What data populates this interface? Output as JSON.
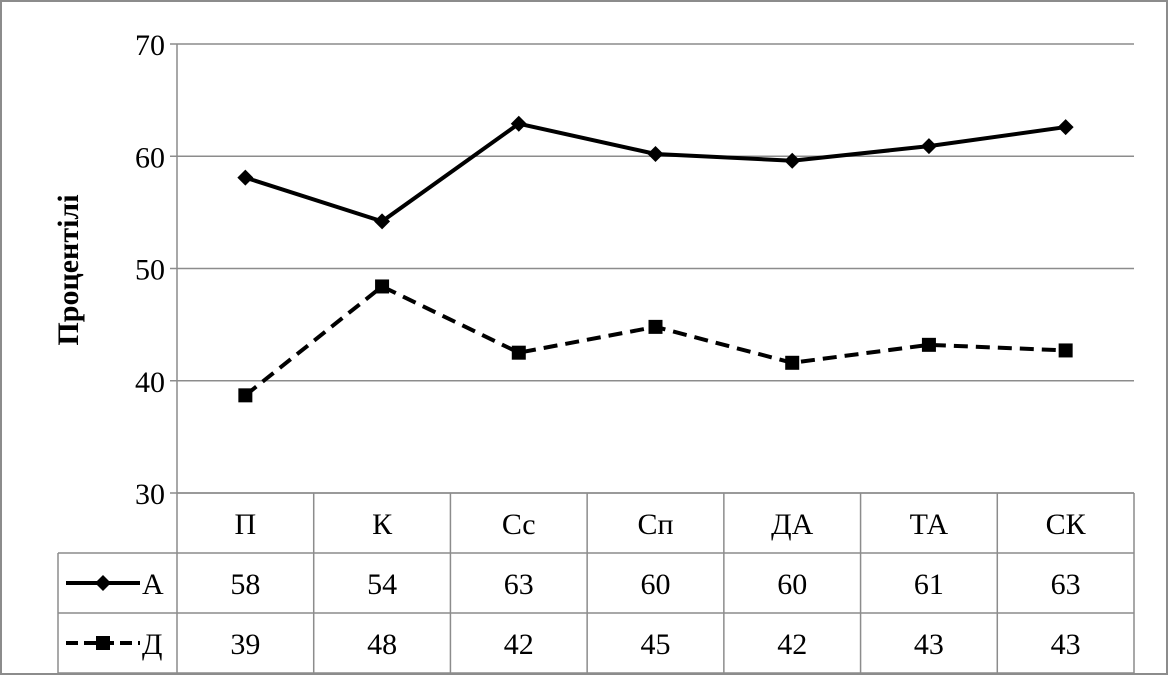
{
  "chart_data": {
    "type": "line",
    "title": "",
    "xlabel": "",
    "ylabel": "Процентілі",
    "ylim": [
      30,
      70
    ],
    "yticks": [
      "30",
      "40",
      "50",
      "60",
      "70"
    ],
    "grid": true,
    "legend_placement": "data table rows",
    "categories": [
      "П",
      "К",
      "Сс",
      "Сп",
      "ДА",
      "ТА",
      "СК"
    ],
    "series": [
      {
        "name": "А",
        "line_style": "solid",
        "marker": "diamond",
        "color": "#000000",
        "values": [
          58.1,
          54.2,
          62.9,
          60.2,
          59.6,
          60.9,
          62.6
        ],
        "table_values": [
          "58",
          "54",
          "63",
          "60",
          "60",
          "61",
          "63"
        ]
      },
      {
        "name": "Д",
        "line_style": "dashed",
        "marker": "square",
        "color": "#000000",
        "values": [
          38.7,
          48.4,
          42.5,
          44.8,
          41.6,
          43.2,
          42.7
        ],
        "table_values": [
          "39",
          "48",
          "42",
          "45",
          "42",
          "43",
          "43"
        ]
      }
    ]
  }
}
